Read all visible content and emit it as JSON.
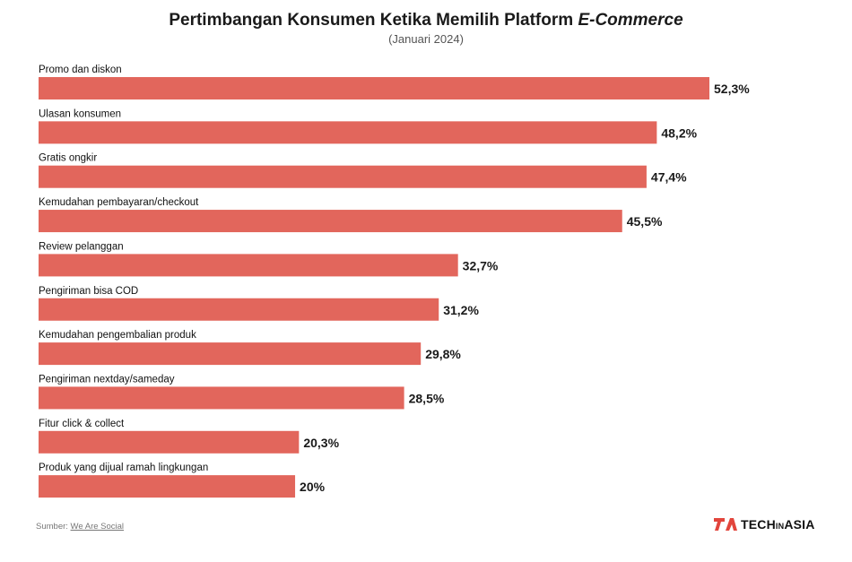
{
  "header": {
    "title_main": "Pertimbangan Konsumen Ketika Memilih Platform ",
    "title_italic": "E-Commerce",
    "subtitle": "(Januari 2024)"
  },
  "footer": {
    "source_prefix": "Sumber: ",
    "source_name": "We Are Social",
    "logo_part1": "TECH",
    "logo_part2": "IN",
    "logo_part3": "ASIA"
  },
  "colors": {
    "bar": "#e2665c",
    "logo_accent": "#e2453c"
  },
  "chart_data": {
    "type": "bar",
    "orientation": "horizontal",
    "categories": [
      "Promo dan diskon",
      "Ulasan konsumen",
      "Gratis ongkir",
      "Kemudahan pembayaran/checkout",
      "Review pelanggan",
      "Pengiriman bisa COD",
      "Kemudahan pengembalian produk",
      "Pengiriman nextday/sameday",
      "Fitur click & collect",
      "Produk yang dijual ramah lingkungan"
    ],
    "values": [
      52.3,
      48.2,
      47.4,
      45.5,
      32.7,
      31.2,
      29.8,
      28.5,
      20.3,
      20
    ],
    "value_labels": [
      "52,3%",
      "48,2%",
      "47,4%",
      "45,5%",
      "32,7%",
      "31,2%",
      "29,8%",
      "28,5%",
      "20,3%",
      "20%"
    ],
    "grid": false,
    "legend": "none"
  }
}
